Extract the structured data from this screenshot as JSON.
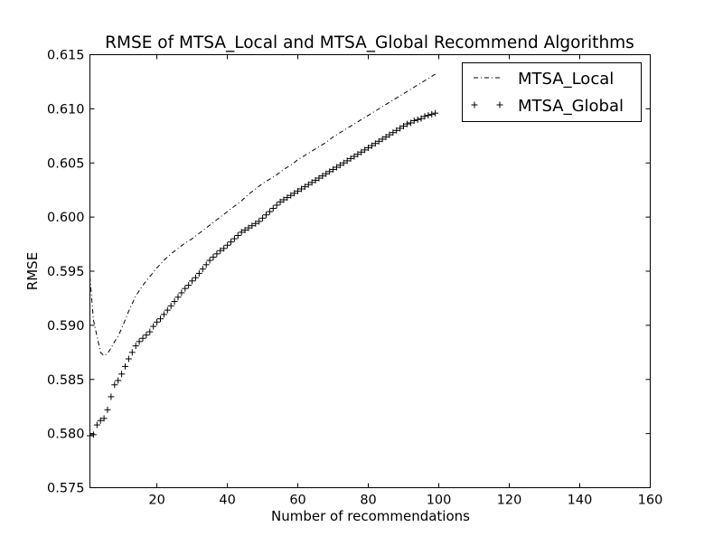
{
  "chart_data": {
    "type": "line",
    "title": "RMSE of MTSA_Local and MTSA_Global Recommend Algorithms",
    "xlabel": "Number of recommendations",
    "ylabel": "RMSE",
    "xlim": [
      1,
      160
    ],
    "ylim": [
      0.575,
      0.615
    ],
    "x_ticks": [
      20,
      40,
      60,
      80,
      100,
      120,
      140,
      160
    ],
    "y_ticks": [
      0.575,
      0.58,
      0.585,
      0.59,
      0.595,
      0.6,
      0.605,
      0.61,
      0.615
    ],
    "x_tick_labels": [
      "20",
      "40",
      "60",
      "80",
      "100",
      "120",
      "140",
      "160"
    ],
    "y_tick_labels": [
      "0.575",
      "0.580",
      "0.585",
      "0.590",
      "0.595",
      "0.600",
      "0.605",
      "0.610",
      "0.615"
    ],
    "grid": false,
    "legend_position": "top-right",
    "series": [
      {
        "name": "MTSA_Local",
        "style": "dash-dot",
        "color": "#000000",
        "x": [
          1,
          2,
          3,
          4,
          5,
          6,
          7,
          8,
          9,
          10,
          11,
          12,
          13,
          14,
          15,
          16,
          17,
          18,
          19,
          20,
          22,
          24,
          26,
          28,
          30,
          32,
          34,
          36,
          38,
          40,
          42,
          44,
          46,
          48,
          50,
          52,
          54,
          56,
          58,
          60,
          62,
          64,
          66,
          68,
          70,
          72,
          74,
          76,
          78,
          80,
          82,
          84,
          86,
          88,
          90,
          92,
          94,
          96,
          98,
          99
        ],
        "y": [
          0.5945,
          0.5905,
          0.589,
          0.5875,
          0.5872,
          0.5874,
          0.5879,
          0.5885,
          0.589,
          0.5897,
          0.5905,
          0.5913,
          0.592,
          0.5927,
          0.5932,
          0.5937,
          0.5941,
          0.5945,
          0.5949,
          0.5953,
          0.596,
          0.5966,
          0.5971,
          0.5976,
          0.598,
          0.5985,
          0.599,
          0.5995,
          0.6,
          0.6005,
          0.601,
          0.6015,
          0.6021,
          0.6026,
          0.6031,
          0.6035,
          0.6039,
          0.6044,
          0.6048,
          0.6053,
          0.6057,
          0.6061,
          0.6065,
          0.6069,
          0.6074,
          0.6078,
          0.6082,
          0.6086,
          0.609,
          0.6094,
          0.6098,
          0.6102,
          0.6106,
          0.611,
          0.6114,
          0.6118,
          0.6122,
          0.6126,
          0.613,
          0.6132
        ]
      },
      {
        "name": "MTSA_Global",
        "style": "plus-marker",
        "color": "#000000",
        "x": [
          1,
          2,
          3,
          4,
          5,
          6,
          7,
          8,
          9,
          10,
          11,
          12,
          13,
          14,
          15,
          16,
          17,
          18,
          19,
          20,
          21,
          22,
          23,
          24,
          25,
          26,
          27,
          28,
          29,
          30,
          31,
          32,
          33,
          34,
          35,
          36,
          37,
          38,
          39,
          40,
          41,
          42,
          43,
          44,
          45,
          46,
          47,
          48,
          49,
          50,
          51,
          52,
          53,
          54,
          55,
          56,
          57,
          58,
          59,
          60,
          61,
          62,
          63,
          64,
          65,
          66,
          67,
          68,
          69,
          70,
          71,
          72,
          73,
          74,
          75,
          76,
          77,
          78,
          79,
          80,
          81,
          82,
          83,
          84,
          85,
          86,
          87,
          88,
          89,
          90,
          91,
          92,
          93,
          94,
          95,
          96,
          97,
          98,
          99
        ],
        "y": [
          0.5798,
          0.5799,
          0.5808,
          0.5812,
          0.5814,
          0.5822,
          0.5834,
          0.5845,
          0.5849,
          0.5855,
          0.5862,
          0.5869,
          0.5875,
          0.5881,
          0.5885,
          0.5888,
          0.5891,
          0.5894,
          0.5899,
          0.5903,
          0.5906,
          0.591,
          0.5914,
          0.5918,
          0.5922,
          0.5926,
          0.593,
          0.5934,
          0.5937,
          0.5941,
          0.5944,
          0.5948,
          0.5952,
          0.5956,
          0.596,
          0.5963,
          0.5966,
          0.5969,
          0.5971,
          0.5974,
          0.5977,
          0.598,
          0.5983,
          0.5986,
          0.5988,
          0.599,
          0.5992,
          0.5994,
          0.5996,
          0.5999,
          0.6002,
          0.6005,
          0.6008,
          0.6011,
          0.6014,
          0.6016,
          0.6018,
          0.602,
          0.6022,
          0.6024,
          0.6026,
          0.6028,
          0.603,
          0.6032,
          0.6034,
          0.6036,
          0.6038,
          0.604,
          0.6042,
          0.6044,
          0.6046,
          0.6048,
          0.605,
          0.6052,
          0.6054,
          0.6056,
          0.6058,
          0.606,
          0.6062,
          0.6064,
          0.6066,
          0.6068,
          0.607,
          0.6072,
          0.6074,
          0.6076,
          0.6078,
          0.608,
          0.6082,
          0.6084,
          0.6086,
          0.6087,
          0.6089,
          0.609,
          0.6091,
          0.6093,
          0.6094,
          0.6095,
          0.6096
        ]
      }
    ]
  }
}
